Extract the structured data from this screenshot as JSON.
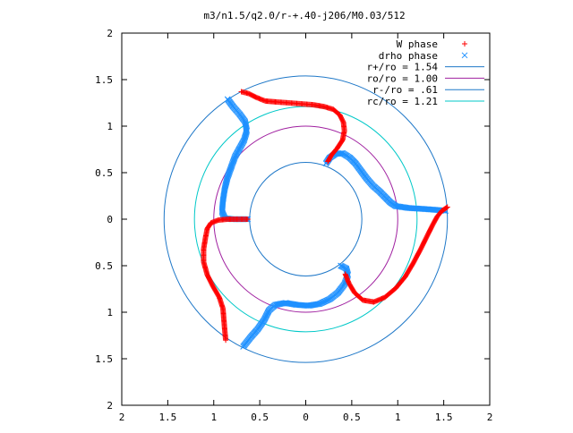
{
  "chart_data": {
    "type": "scatter",
    "title": "m3/n1.5/q2.0/r-+.40-j206/M0.03/512",
    "xlabel": "",
    "ylabel": "",
    "xlim": [
      -2,
      2
    ],
    "ylim": [
      -2,
      2
    ],
    "x_ticks": [
      -2,
      -1.5,
      -1,
      -0.5,
      0,
      0.5,
      1,
      1.5,
      2
    ],
    "y_ticks": [
      -2,
      -1.5,
      -1,
      -0.5,
      0,
      0.5,
      1,
      1.5,
      2
    ],
    "x_tick_labels": [
      "2",
      "1.5",
      "1",
      "0.5",
      "0",
      "0.5",
      "1",
      "1.5",
      "2"
    ],
    "y_tick_labels": [
      "2",
      "1.5",
      "1",
      "0.5",
      "0",
      "0.5",
      "1",
      "1.5",
      "2"
    ],
    "grid": false,
    "legend_position": "top-right",
    "series": [
      {
        "name": "W phase",
        "marker": "+",
        "color": "#ff0000",
        "arms": [
          [
            [
              1.54,
              0.13
            ],
            [
              1.48,
              0.09
            ],
            [
              1.43,
              0.03
            ],
            [
              1.38,
              -0.06
            ],
            [
              1.32,
              -0.18
            ],
            [
              1.25,
              -0.32
            ],
            [
              1.17,
              -0.47
            ],
            [
              1.08,
              -0.62
            ],
            [
              0.98,
              -0.74
            ],
            [
              0.86,
              -0.84
            ],
            [
              0.74,
              -0.89
            ],
            [
              0.62,
              -0.87
            ],
            [
              0.53,
              -0.79
            ],
            [
              0.47,
              -0.69
            ],
            [
              0.43,
              -0.59
            ]
          ],
          [
            [
              -0.7,
              1.37
            ],
            [
              -0.62,
              1.35
            ],
            [
              -0.54,
              1.31
            ],
            [
              -0.44,
              1.27
            ],
            [
              -0.32,
              1.26
            ],
            [
              -0.18,
              1.25
            ],
            [
              -0.05,
              1.24
            ],
            [
              0.08,
              1.23
            ],
            [
              0.2,
              1.21
            ],
            [
              0.3,
              1.18
            ],
            [
              0.37,
              1.12
            ],
            [
              0.41,
              1.04
            ],
            [
              0.42,
              0.95
            ],
            [
              0.4,
              0.85
            ],
            [
              0.34,
              0.76
            ],
            [
              0.28,
              0.69
            ],
            [
              0.24,
              0.62
            ]
          ],
          [
            [
              -0.87,
              -1.3
            ],
            [
              -0.88,
              -1.2
            ],
            [
              -0.89,
              -1.08
            ],
            [
              -0.9,
              -0.96
            ],
            [
              -0.94,
              -0.84
            ],
            [
              -1.01,
              -0.72
            ],
            [
              -1.07,
              -0.6
            ],
            [
              -1.11,
              -0.46
            ],
            [
              -1.11,
              -0.32
            ],
            [
              -1.09,
              -0.2
            ],
            [
              -1.07,
              -0.1
            ],
            [
              -1.03,
              -0.04
            ],
            [
              -0.95,
              -0.01
            ],
            [
              -0.85,
              0.0
            ],
            [
              -0.75,
              0.0
            ],
            [
              -0.63,
              0.0
            ]
          ]
        ]
      },
      {
        "name": "drho phase",
        "marker": "x",
        "color": "#1e90ff",
        "arms": [
          [
            [
              1.52,
              0.09
            ],
            [
              1.42,
              0.1
            ],
            [
              1.28,
              0.11
            ],
            [
              1.12,
              0.12
            ],
            [
              0.98,
              0.14
            ],
            [
              0.92,
              0.18
            ],
            [
              0.86,
              0.24
            ],
            [
              0.8,
              0.3
            ],
            [
              0.73,
              0.36
            ],
            [
              0.66,
              0.44
            ],
            [
              0.6,
              0.52
            ],
            [
              0.54,
              0.6
            ],
            [
              0.48,
              0.66
            ],
            [
              0.4,
              0.71
            ],
            [
              0.32,
              0.7
            ],
            [
              0.26,
              0.66
            ],
            [
              0.22,
              0.6
            ]
          ],
          [
            [
              -0.85,
              1.29
            ],
            [
              -0.79,
              1.21
            ],
            [
              -0.72,
              1.13
            ],
            [
              -0.66,
              1.05
            ],
            [
              -0.64,
              0.95
            ],
            [
              -0.67,
              0.85
            ],
            [
              -0.72,
              0.76
            ],
            [
              -0.77,
              0.67
            ],
            [
              -0.81,
              0.56
            ],
            [
              -0.85,
              0.45
            ],
            [
              -0.88,
              0.33
            ],
            [
              -0.9,
              0.2
            ],
            [
              -0.91,
              0.08
            ],
            [
              -0.88,
              0.01
            ],
            [
              -0.8,
              0.0
            ],
            [
              -0.7,
              0.0
            ],
            [
              -0.63,
              0.0
            ]
          ],
          [
            [
              -0.68,
              -1.37
            ],
            [
              -0.6,
              -1.27
            ],
            [
              -0.52,
              -1.18
            ],
            [
              -0.45,
              -1.08
            ],
            [
              -0.4,
              -0.98
            ],
            [
              -0.33,
              -0.92
            ],
            [
              -0.22,
              -0.9
            ],
            [
              -0.1,
              -0.92
            ],
            [
              0.03,
              -0.93
            ],
            [
              0.15,
              -0.91
            ],
            [
              0.26,
              -0.86
            ],
            [
              0.35,
              -0.79
            ],
            [
              0.42,
              -0.7
            ],
            [
              0.46,
              -0.6
            ],
            [
              0.44,
              -0.53
            ],
            [
              0.38,
              -0.5
            ]
          ]
        ]
      }
    ],
    "circles": [
      {
        "name": "r+/ro = 1.54",
        "radius": 1.54,
        "color": "#1f78c8"
      },
      {
        "name": "ro/ro = 1.00",
        "radius": 1.0,
        "color": "#a020a0"
      },
      {
        "name": "r-/ro = .61",
        "radius": 0.61,
        "color": "#1f78c8"
      },
      {
        "name": "rc/ro = 1.21",
        "radius": 1.21,
        "color": "#00c8c8"
      }
    ]
  }
}
